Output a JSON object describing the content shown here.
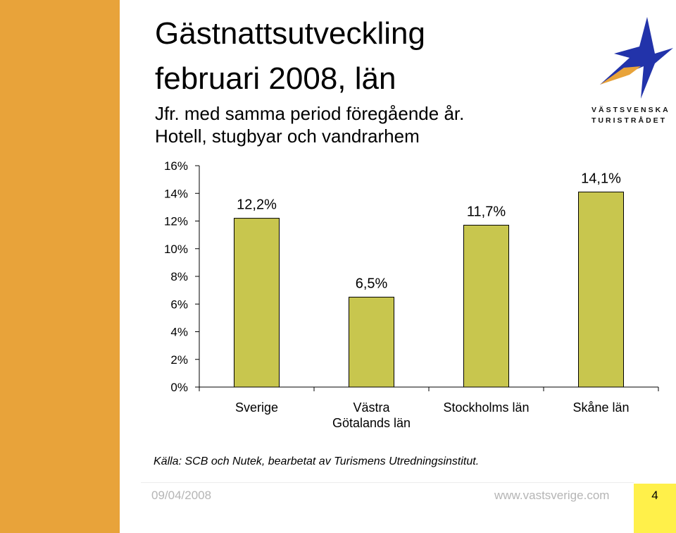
{
  "header": {
    "title_line1": "Gästnattsutveckling",
    "title_line2": "februari 2008, län",
    "subtitle_line1": "Jfr. med samma period föregående år.",
    "subtitle_line2": "Hotell, stugbyar och vandrarhem"
  },
  "logo": {
    "line1": "VÄSTSVENSKA",
    "line2": "TURISTRÅDET",
    "icon": "star-icon"
  },
  "chart_data": {
    "type": "bar",
    "title": "",
    "xlabel": "",
    "ylabel": "",
    "categories": [
      "Sverige",
      "Västra Götalands län",
      "Stockholms län",
      "Skåne län"
    ],
    "category_lines": [
      [
        "Sverige"
      ],
      [
        "Västra",
        "Götalands län"
      ],
      [
        "Stockholms län"
      ],
      [
        "Skåne län"
      ]
    ],
    "values": [
      12.2,
      6.5,
      11.7,
      14.1
    ],
    "value_labels": [
      "12,2%",
      "6,5%",
      "11,7%",
      "14,1%"
    ],
    "y_ticks": [
      0,
      2,
      4,
      6,
      8,
      10,
      12,
      14,
      16
    ],
    "y_tick_labels": [
      "0%",
      "2%",
      "4%",
      "6%",
      "8%",
      "10%",
      "12%",
      "14%",
      "16%"
    ],
    "ylim": [
      0,
      16
    ],
    "grid": false,
    "legend": "none",
    "bar_color": "#C8C64E"
  },
  "footer": {
    "source": "Källa: SCB och Nutek, bearbetat av Turismens Utredningsinstitut.",
    "date": "09/04/2008",
    "url": "www.vastsverige.com",
    "page_number": "4"
  },
  "colors": {
    "accent_orange": "#E8A33A",
    "page_box_yellow": "#FFF04A",
    "logo_blue": "#2233AA",
    "logo_gold": "#E8A33A"
  }
}
